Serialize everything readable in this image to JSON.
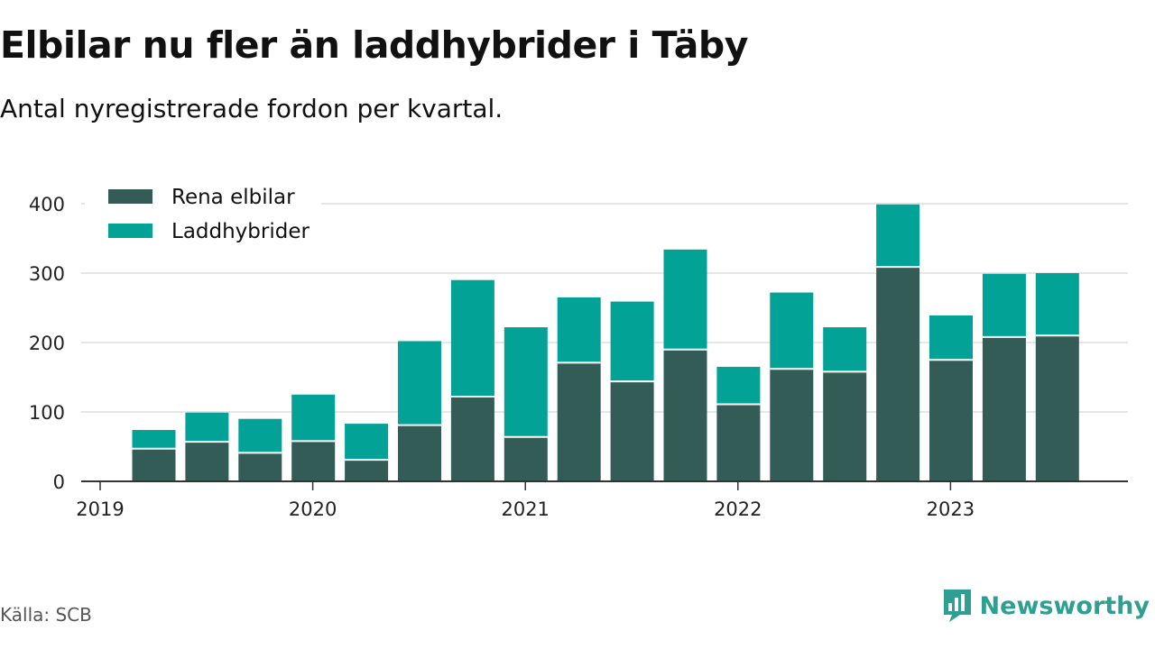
{
  "title": "Elbilar nu fler än laddhybrider i Täby",
  "subtitle": "Antal nyregistrerade fordon per kvartal.",
  "source": "Källa: SCB",
  "brand": "Newsworthy",
  "colors": {
    "elbilar": "#335c56",
    "laddhybrider": "#02a296",
    "grid": "#dddddd",
    "axis": "#333333",
    "brand": "#2f9f93"
  },
  "chart_data": {
    "type": "bar",
    "stacked": true,
    "categories": [
      "2019 Q2",
      "2019 Q3",
      "2019 Q4",
      "2020 Q1",
      "2020 Q2",
      "2020 Q3",
      "2020 Q4",
      "2021 Q1",
      "2021 Q2",
      "2021 Q3",
      "2021 Q4",
      "2022 Q1",
      "2022 Q2",
      "2022 Q3",
      "2022 Q4",
      "2023 Q1",
      "2023 Q2",
      "2023 Q3"
    ],
    "series": [
      {
        "name": "Rena elbilar",
        "values": [
          47,
          57,
          41,
          58,
          31,
          81,
          122,
          64,
          171,
          144,
          190,
          111,
          162,
          158,
          309,
          175,
          208,
          210
        ]
      },
      {
        "name": "Laddhybrider",
        "values": [
          27,
          42,
          49,
          67,
          52,
          121,
          168,
          158,
          94,
          115,
          144,
          54,
          110,
          64,
          90,
          64,
          91,
          90
        ]
      }
    ],
    "yticks": [
      0,
      100,
      200,
      300,
      400
    ],
    "ylim": [
      0,
      400
    ],
    "xticks": [
      "2019",
      "2020",
      "2021",
      "2022",
      "2023"
    ],
    "legend": "top-left",
    "grid": true,
    "xlabel": "",
    "ylabel": ""
  }
}
